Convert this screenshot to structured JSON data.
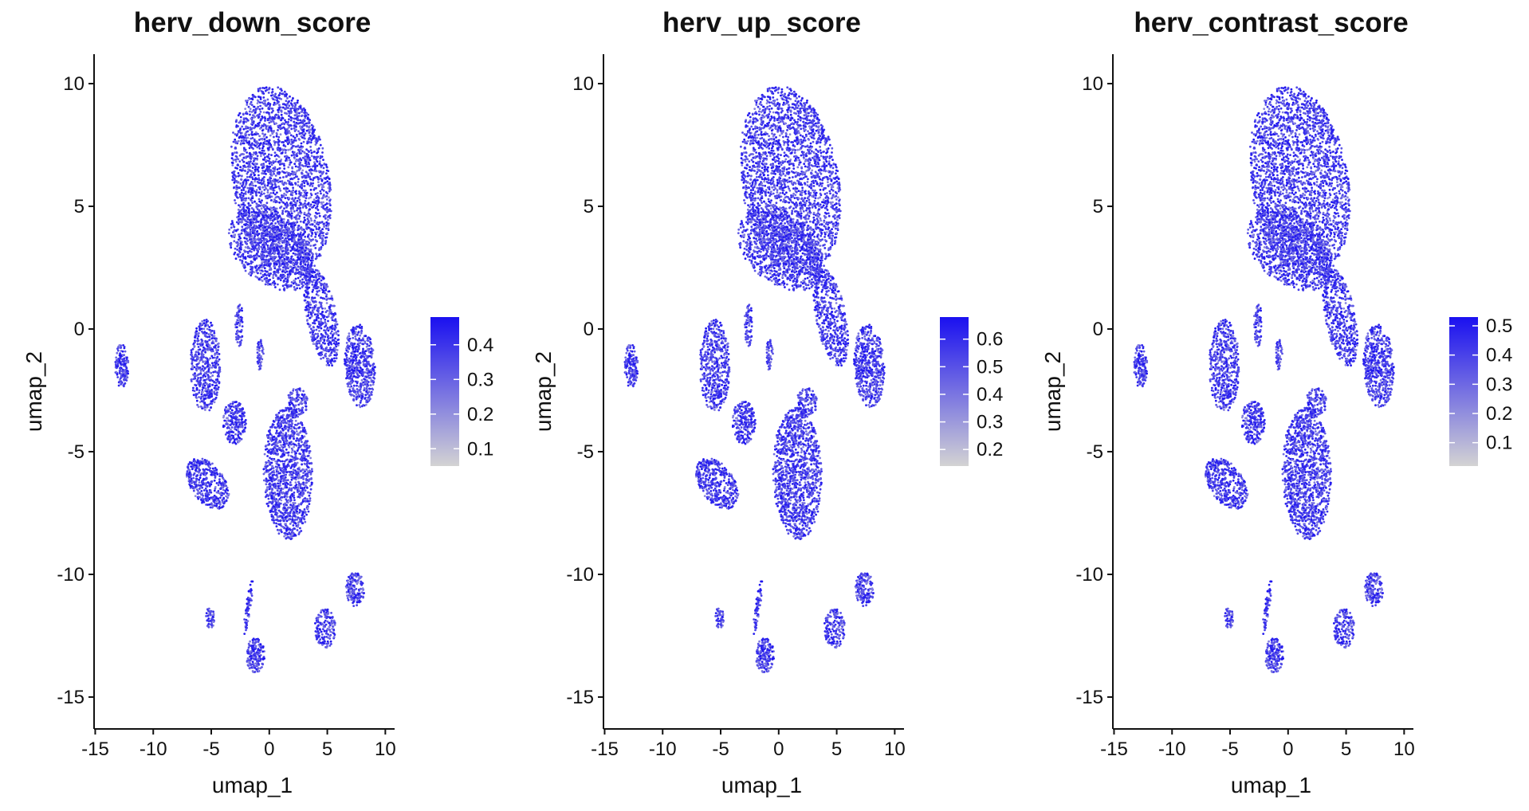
{
  "chart_data": [
    {
      "type": "scatter",
      "title": "herv_down_score",
      "xlabel": "umap_1",
      "ylabel": "umap_2",
      "xlim": [
        -15.1,
        10.8
      ],
      "ylim": [
        -16.3,
        11.2
      ],
      "xticks": [
        -15,
        -10,
        -5,
        0,
        5,
        10
      ],
      "yticks": [
        10,
        5,
        0,
        -5,
        -10,
        -15
      ],
      "color_scale": {
        "low": "#d3d3d3",
        "high": "#1a10f0",
        "min": 0.05,
        "max": 0.48,
        "ticks": [
          0.1,
          0.2,
          0.3,
          0.4
        ]
      },
      "grid": false,
      "legend": "right"
    },
    {
      "type": "scatter",
      "title": "herv_up_score",
      "xlabel": "umap_1",
      "ylabel": "umap_2",
      "xlim": [
        -15.1,
        10.8
      ],
      "ylim": [
        -16.3,
        11.2
      ],
      "xticks": [
        -15,
        -10,
        -5,
        0,
        5,
        10
      ],
      "yticks": [
        10,
        5,
        0,
        -5,
        -10,
        -15
      ],
      "color_scale": {
        "low": "#d3d3d3",
        "high": "#1a10f0",
        "min": 0.14,
        "max": 0.68,
        "ticks": [
          0.2,
          0.3,
          0.4,
          0.5,
          0.6
        ]
      },
      "grid": false,
      "legend": "right"
    },
    {
      "type": "scatter",
      "title": "herv_contrast_score",
      "xlabel": "umap_1",
      "ylabel": "umap_2",
      "xlim": [
        -15.1,
        10.8
      ],
      "ylim": [
        -16.3,
        11.2
      ],
      "xticks": [
        -15,
        -10,
        -5,
        0,
        5,
        10
      ],
      "yticks": [
        10,
        5,
        0,
        -5,
        -10,
        -15
      ],
      "color_scale": {
        "low": "#d3d3d3",
        "high": "#1a10f0",
        "min": 0.02,
        "max": 0.53,
        "ticks": [
          0.1,
          0.2,
          0.3,
          0.4,
          0.5
        ]
      },
      "grid": false,
      "legend": "right"
    }
  ]
}
